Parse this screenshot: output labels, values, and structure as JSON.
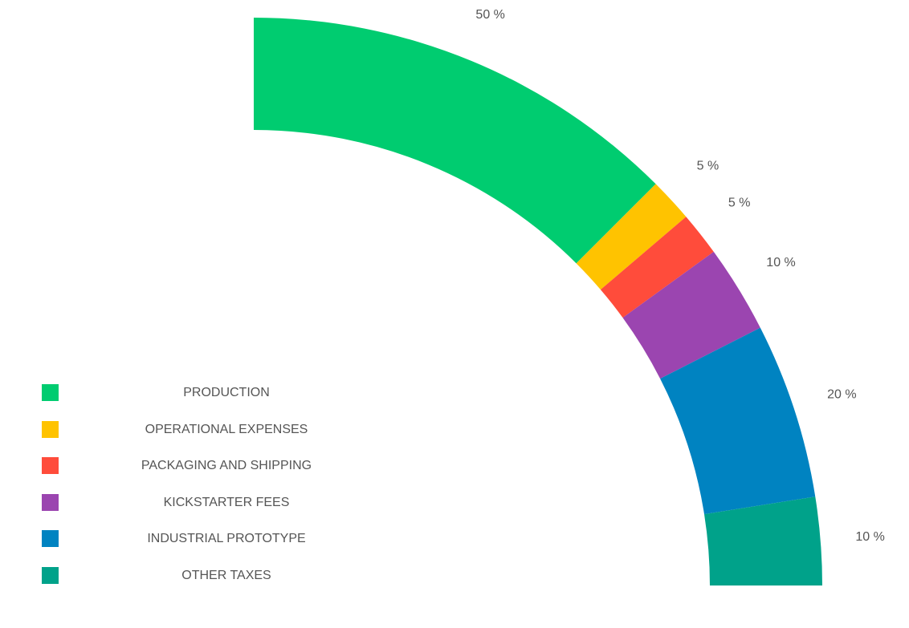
{
  "chart_data": {
    "type": "pie",
    "subtype": "quarter-donut",
    "title": "",
    "slices": [
      {
        "label": "PRODUCTION",
        "value": 50,
        "value_label": "50 %",
        "color": "#00cc70"
      },
      {
        "label": "OPERATIONAL EXPENSES",
        "value": 5,
        "value_label": "5 %",
        "color": "#ffc300"
      },
      {
        "label": "PACKAGING AND SHIPPING",
        "value": 5,
        "value_label": "5 %",
        "color": "#ff4c3b"
      },
      {
        "label": "KICKSTARTER FEES",
        "value": 10,
        "value_label": "10 %",
        "color": "#9b45b0"
      },
      {
        "label": "INDUSTRIAL PROTOTYPE",
        "value": 20,
        "value_label": "20 %",
        "color": "#0083c1"
      },
      {
        "label": "OTHER TAXES",
        "value": 10,
        "value_label": "10 %",
        "color": "#00a28a"
      }
    ],
    "legend_position": "bottom-left"
  }
}
